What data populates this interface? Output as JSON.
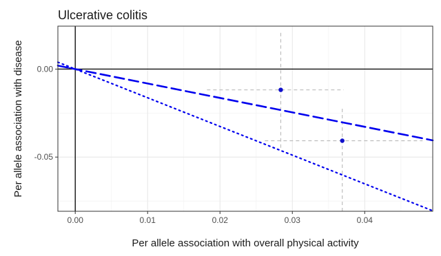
{
  "chart_data": {
    "type": "scatter",
    "title": "Ulcerative colitis",
    "xlabel": "Per allele association with overall physical activity",
    "ylabel": "Per allele association with disease",
    "xlim": [
      -0.0024,
      0.0494
    ],
    "ylim": [
      -0.0808,
      0.0244
    ],
    "xticks": [
      0.0,
      0.01,
      0.02,
      0.03,
      0.04
    ],
    "xtick_labels": [
      "0.00",
      "0.01",
      "0.02",
      "0.03",
      "0.04"
    ],
    "yticks": [
      0.0,
      -0.05
    ],
    "ytick_labels": [
      "0.00",
      "-0.05"
    ],
    "grid": true,
    "points": [
      {
        "x": 0.0284,
        "y": -0.0118,
        "x_low": 0.0182,
        "x_high": 0.0371,
        "y_low": -0.0447,
        "y_high": 0.0212
      },
      {
        "x": 0.0369,
        "y": -0.0407,
        "x_low": 0.0262,
        "x_high": 0.048,
        "y_low": -0.0808,
        "y_high": -0.021
      }
    ],
    "lines": [
      {
        "style": "dashed",
        "slope": -0.82,
        "intercept": 0.0
      },
      {
        "style": "dotted",
        "slope": -1.63,
        "intercept": 0.0
      },
      {
        "style": "dashdot",
        "slope": -0.8,
        "intercept": 0.0,
        "x_end": 0.0
      }
    ],
    "zero_lines": {
      "x": 0.0,
      "y": 0.0
    }
  },
  "colors": {
    "line": "#0000ee",
    "point": "#1010cc",
    "errorbar": "#bdbdbd",
    "grid_major": "#e6e6e6",
    "grid_minor": "#f3f3f3",
    "axis_zero": "#000000",
    "panel_border": "#333333",
    "text": "#1a1a1a",
    "tick_text": "#4d4d4d"
  }
}
